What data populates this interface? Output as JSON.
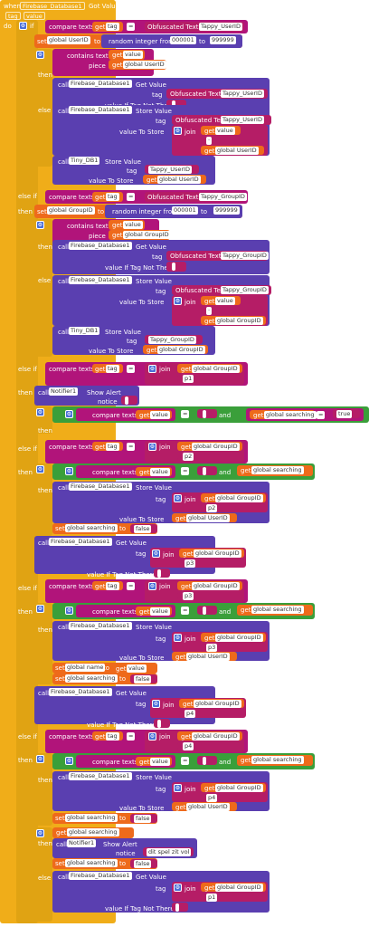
{
  "event": {
    "when": "when",
    "component": "Firebase_Database1",
    "event": "Got Value",
    "params": [
      "tag",
      "value"
    ],
    "do": "do"
  },
  "kw": {
    "if": "if",
    "then": "then",
    "else": "else",
    "else_if": "else if",
    "call": "call",
    "set": "set",
    "to": "to",
    "get": "get",
    "join": "join",
    "and": "and",
    "compare": "compare texts",
    "random": "random integer from",
    "contains": "contains text",
    "piece": "piece",
    "tag": "tag",
    "valueifnot": "value If Tag Not There",
    "valuetostore": "value To Store",
    "notice": "notice",
    "show_alert": "Show Alert",
    "get_value": "Get Value",
    "store_value": "Store Value",
    "obf": "Obfuscated Text",
    "value": "value",
    "eq": "="
  },
  "vars": {
    "userid": "global UserID",
    "groupid": "global GroupID",
    "searching": "global searching",
    "name": "global name",
    "tag": "tag",
    "value": "value"
  },
  "comp": {
    "fb": "Firebase_Database1",
    "tiny": "Tiny_DB1",
    "notifier": "Notifier1"
  },
  "strings": {
    "tappy_userid": "Tappy_UserID",
    "tappy_groupid": "Tappy_GroupID",
    "from": "000001",
    "to": "999999",
    "p1": "p1",
    "p2": "p2",
    "p3": "p3",
    "p4": "p4",
    "true": "true",
    "false": "false",
    "msg": "dit spel zit vol",
    "empty": " ",
    "dot": "·"
  }
}
